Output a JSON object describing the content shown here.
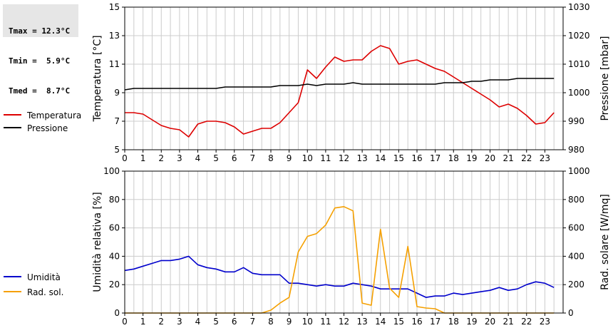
{
  "stats": {
    "tmax": "Tmax = 12.3°C",
    "tmin": "Tmin =  5.9°C",
    "tmed": "Tmed =  8.7°C"
  },
  "colors": {
    "temperature": "#dd0000",
    "pressure": "#000000",
    "humidity": "#0000cc",
    "solar": "#f5a000",
    "grid": "#cccccc",
    "axis": "#000000"
  },
  "chart_data": [
    {
      "type": "line",
      "legend_placement": "left",
      "grid": true,
      "x_ticks": [
        0,
        1,
        2,
        3,
        4,
        5,
        6,
        7,
        8,
        9,
        10,
        11,
        12,
        13,
        14,
        15,
        16,
        17,
        18,
        19,
        20,
        21,
        22,
        23
      ],
      "xlim": [
        0,
        24
      ],
      "y_left": {
        "label": "Temperatura [°C]",
        "lim": [
          5,
          15
        ],
        "ticks": [
          5,
          7,
          9,
          11,
          13,
          15
        ]
      },
      "y_right": {
        "label": "Pressione [mbar]",
        "lim": [
          980,
          1030
        ],
        "ticks": [
          980,
          990,
          1000,
          1010,
          1020,
          1030
        ]
      },
      "series": [
        {
          "name": "Temperatura",
          "axis": "left",
          "color_key": "temperature",
          "x": [
            0,
            0.5,
            1,
            1.5,
            2,
            2.5,
            3,
            3.5,
            4,
            4.5,
            5,
            5.5,
            6,
            6.5,
            7,
            7.5,
            8,
            8.5,
            9,
            9.5,
            10,
            10.5,
            11,
            11.5,
            12,
            12.5,
            13,
            13.5,
            14,
            14.5,
            15,
            15.5,
            16,
            16.5,
            17,
            17.5,
            18,
            18.5,
            19,
            19.5,
            20,
            20.5,
            21,
            21.5,
            22,
            22.5,
            23,
            23.5
          ],
          "values": [
            7.6,
            7.6,
            7.5,
            7.1,
            6.7,
            6.5,
            6.4,
            5.9,
            6.8,
            7.0,
            7.0,
            6.9,
            6.6,
            6.1,
            6.3,
            6.5,
            6.5,
            6.9,
            7.6,
            8.3,
            10.6,
            10.0,
            10.8,
            11.5,
            11.2,
            11.3,
            11.3,
            11.9,
            12.3,
            12.1,
            11.0,
            11.2,
            11.3,
            11.0,
            10.7,
            10.5,
            10.1,
            9.7,
            9.3,
            8.9,
            8.5,
            8.0,
            8.2,
            7.9,
            7.4,
            6.8,
            6.9,
            7.6
          ]
        },
        {
          "name": "Pressione",
          "axis": "right",
          "color_key": "pressure",
          "x": [
            0,
            0.5,
            1,
            1.5,
            2,
            2.5,
            3,
            3.5,
            4,
            4.5,
            5,
            5.5,
            6,
            6.5,
            7,
            7.5,
            8,
            8.5,
            9,
            9.5,
            10,
            10.5,
            11,
            11.5,
            12,
            12.5,
            13,
            13.5,
            14,
            14.5,
            15,
            15.5,
            16,
            16.5,
            17,
            17.5,
            18,
            18.5,
            19,
            19.5,
            20,
            20.5,
            21,
            21.5,
            22,
            22.5,
            23,
            23.5
          ],
          "values": [
            1001,
            1001.5,
            1001.5,
            1001.5,
            1001.5,
            1001.5,
            1001.5,
            1001.5,
            1001.5,
            1001.5,
            1001.5,
            1002,
            1002,
            1002,
            1002,
            1002,
            1002,
            1002.5,
            1002.5,
            1002.5,
            1003,
            1002.5,
            1003,
            1003,
            1003,
            1003.5,
            1003,
            1003,
            1003,
            1003,
            1003,
            1003,
            1003,
            1003,
            1003,
            1003.5,
            1003.5,
            1003.5,
            1004,
            1004,
            1004.5,
            1004.5,
            1004.5,
            1005,
            1005,
            1005,
            1005,
            1005
          ]
        }
      ]
    },
    {
      "type": "line",
      "legend_placement": "left",
      "grid": true,
      "x_ticks": [
        0,
        1,
        2,
        3,
        4,
        5,
        6,
        7,
        8,
        9,
        10,
        11,
        12,
        13,
        14,
        15,
        16,
        17,
        18,
        19,
        20,
        21,
        22,
        23
      ],
      "xlim": [
        0,
        24
      ],
      "y_left": {
        "label": "Umidità relativa [%]",
        "lim": [
          0,
          100
        ],
        "ticks": [
          0,
          20,
          40,
          60,
          80,
          100
        ]
      },
      "y_right": {
        "label": "Rad. solare [W/mq]",
        "lim": [
          0,
          1000
        ],
        "ticks": [
          0,
          200,
          400,
          600,
          800,
          1000
        ]
      },
      "series": [
        {
          "name": "Umidità",
          "axis": "left",
          "color_key": "humidity",
          "x": [
            0,
            0.5,
            1,
            1.5,
            2,
            2.5,
            3,
            3.5,
            4,
            4.5,
            5,
            5.5,
            6,
            6.5,
            7,
            7.5,
            8,
            8.5,
            9,
            9.5,
            10,
            10.5,
            11,
            11.5,
            12,
            12.5,
            13,
            13.5,
            14,
            14.5,
            15,
            15.5,
            16,
            16.5,
            17,
            17.5,
            18,
            18.5,
            19,
            19.5,
            20,
            20.5,
            21,
            21.5,
            22,
            22.5,
            23,
            23.5
          ],
          "values": [
            30,
            31,
            33,
            35,
            37,
            37,
            38,
            40,
            34,
            32,
            31,
            29,
            29,
            32,
            28,
            27,
            27,
            27,
            21,
            21,
            20,
            19,
            20,
            19,
            19,
            21,
            20,
            19,
            17,
            17,
            17,
            17,
            14,
            11,
            12,
            12,
            14,
            13,
            14,
            15,
            16,
            18,
            16,
            17,
            20,
            22,
            21,
            18
          ]
        },
        {
          "name": "Rad. sol.",
          "axis": "right",
          "color_key": "solar",
          "x": [
            0,
            0.5,
            1,
            1.5,
            2,
            2.5,
            3,
            3.5,
            4,
            4.5,
            5,
            5.5,
            6,
            6.5,
            7,
            7.5,
            8,
            8.5,
            9,
            9.5,
            10,
            10.5,
            11,
            11.5,
            12,
            12.5,
            13,
            13.5,
            14,
            14.5,
            15,
            15.5,
            16,
            16.5,
            17,
            17.5,
            18,
            18.5,
            19,
            19.5,
            20,
            20.5,
            21,
            21.5,
            22,
            22.5,
            23,
            23.5
          ],
          "values": [
            0,
            0,
            0,
            0,
            0,
            0,
            0,
            0,
            0,
            0,
            0,
            0,
            0,
            0,
            0,
            0,
            20,
            70,
            110,
            430,
            540,
            560,
            620,
            740,
            750,
            720,
            70,
            55,
            590,
            175,
            110,
            470,
            45,
            35,
            30,
            0,
            0,
            0,
            0,
            0,
            0,
            0,
            0,
            0,
            0,
            0,
            0,
            0
          ]
        }
      ]
    }
  ]
}
